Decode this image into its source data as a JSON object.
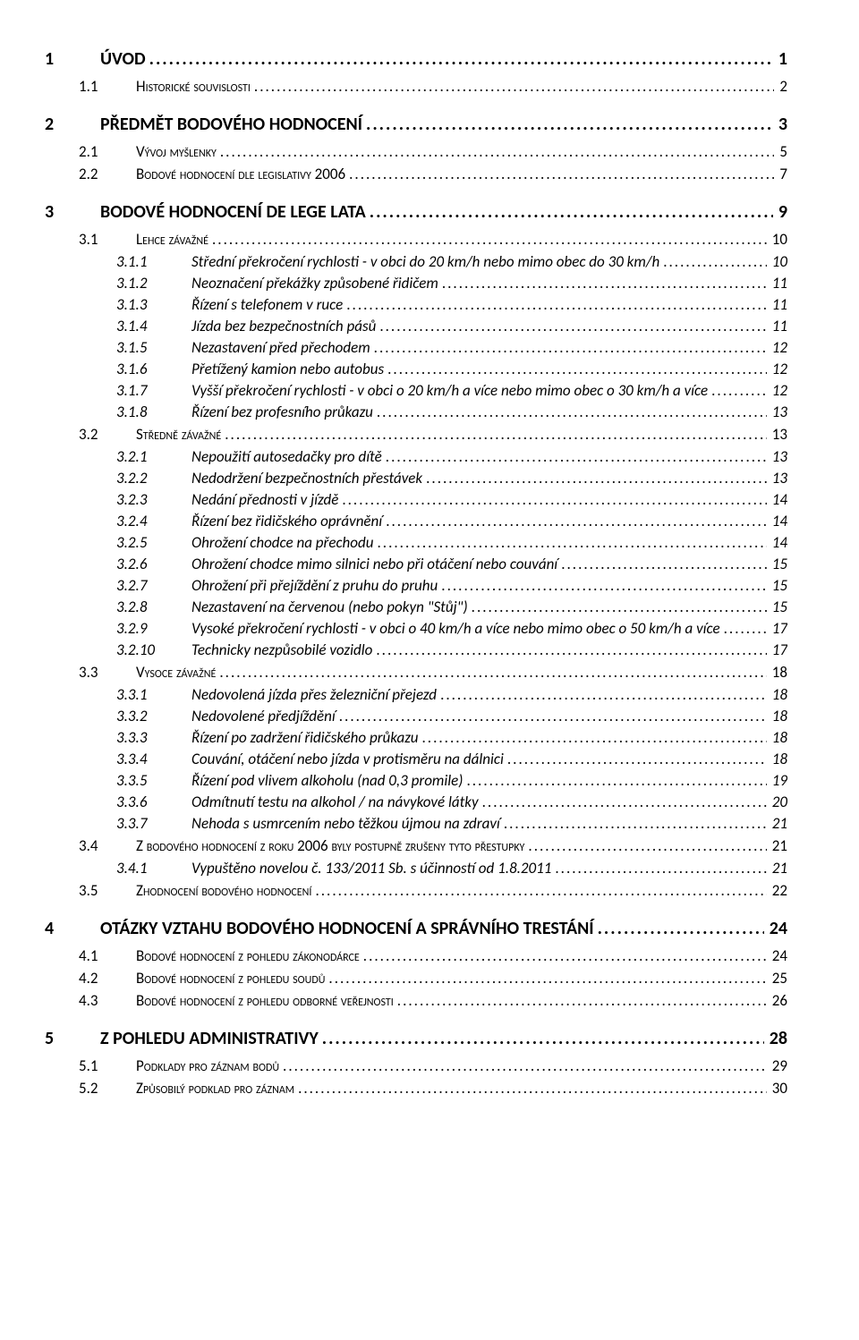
{
  "toc": [
    {
      "level": 1,
      "num": "1",
      "label": "ÚVOD",
      "page": "1"
    },
    {
      "level": 2,
      "num": "1.1",
      "label": "Historické souvislosti",
      "page": "2"
    },
    {
      "level": 1,
      "num": "2",
      "label": "PŘEDMĚT BODOVÉHO HODNOCENÍ",
      "page": "3"
    },
    {
      "level": 2,
      "num": "2.1",
      "label": "Vývoj myšlenky",
      "page": "5"
    },
    {
      "level": 2,
      "num": "2.2",
      "label": "Bodové hodnocení dle legislativy 2006",
      "page": "7"
    },
    {
      "level": 1,
      "num": "3",
      "label": "BODOVÉ HODNOCENÍ DE LEGE LATA",
      "page": "9"
    },
    {
      "level": 2,
      "num": "3.1",
      "label": "Lehce závažné",
      "page": "10"
    },
    {
      "level": 3,
      "num": "3.1.1",
      "label": "Střední překročení rychlosti - v obci do 20 km/h nebo mimo obec do 30 km/h",
      "page": "10"
    },
    {
      "level": 3,
      "num": "3.1.2",
      "label": "Neoznačení překážky způsobené řidičem",
      "page": "11"
    },
    {
      "level": 3,
      "num": "3.1.3",
      "label": "Řízení s telefonem v ruce",
      "page": "11"
    },
    {
      "level": 3,
      "num": "3.1.4",
      "label": "Jízda bez bezpečnostních pásů",
      "page": "11"
    },
    {
      "level": 3,
      "num": "3.1.5",
      "label": "Nezastavení před přechodem",
      "page": "12"
    },
    {
      "level": 3,
      "num": "3.1.6",
      "label": "Přetížený kamion nebo autobus",
      "page": "12"
    },
    {
      "level": 3,
      "num": "3.1.7",
      "label": "Vyšší překročení rychlosti - v obci o 20 km/h  a více nebo mimo obec o 30 km/h a více",
      "page": "12"
    },
    {
      "level": 3,
      "num": "3.1.8",
      "label": "Řízení bez profesního průkazu",
      "page": "13"
    },
    {
      "level": 2,
      "num": "3.2",
      "label": "Středně závažné",
      "page": "13"
    },
    {
      "level": 3,
      "num": "3.2.1",
      "label": "Nepoužití autosedačky pro dítě",
      "page": "13"
    },
    {
      "level": 3,
      "num": "3.2.2",
      "label": "Nedodržení bezpečnostních přestávek",
      "page": "13"
    },
    {
      "level": 3,
      "num": "3.2.3",
      "label": "Nedání přednosti v jízdě",
      "page": "14"
    },
    {
      "level": 3,
      "num": "3.2.4",
      "label": "Řízení bez řidičského oprávnění",
      "page": "14"
    },
    {
      "level": 3,
      "num": "3.2.5",
      "label": "Ohrožení chodce na přechodu",
      "page": "14"
    },
    {
      "level": 3,
      "num": "3.2.6",
      "label": "Ohrožení chodce mimo silnici nebo při otáčení nebo couvání",
      "page": "15"
    },
    {
      "level": 3,
      "num": "3.2.7",
      "label": "Ohrožení při přejíždění z pruhu do pruhu",
      "page": "15"
    },
    {
      "level": 3,
      "num": "3.2.8",
      "label": "Nezastavení na červenou (nebo pokyn \"Stůj\")",
      "page": "15"
    },
    {
      "level": 3,
      "num": "3.2.9",
      "label": "Vysoké překročení rychlosti - v obci o 40 km/h a více nebo mimo obec o 50 km/h a více",
      "page": "17"
    },
    {
      "level": 3,
      "num": "3.2.10",
      "label": "Technicky nezpůsobilé vozidlo",
      "page": "17"
    },
    {
      "level": 2,
      "num": "3.3",
      "label": "Vysoce závažné",
      "page": "18"
    },
    {
      "level": 3,
      "num": "3.3.1",
      "label": "Nedovolená jízda přes železniční přejezd",
      "page": "18"
    },
    {
      "level": 3,
      "num": "3.3.2",
      "label": "Nedovolené předjíždění",
      "page": "18"
    },
    {
      "level": 3,
      "num": "3.3.3",
      "label": "Řízení po zadržení řidičského průkazu",
      "page": "18"
    },
    {
      "level": 3,
      "num": "3.3.4",
      "label": "Couvání, otáčení nebo jízda v protisměru na dálnici",
      "page": "18"
    },
    {
      "level": 3,
      "num": "3.3.5",
      "label": "Řízení pod vlivem alkoholu (nad 0,3 promile)",
      "page": "19"
    },
    {
      "level": 3,
      "num": "3.3.6",
      "label": "Odmítnutí testu na alkohol / na návykové látky",
      "page": "20"
    },
    {
      "level": 3,
      "num": "3.3.7",
      "label": "Nehoda s usmrcením nebo těžkou újmou na zdraví",
      "page": "21"
    },
    {
      "level": 2,
      "num": "3.4",
      "label": "Z bodového hodnocení z roku 2006 byly postupně zrušeny tyto přestupky",
      "page": "21"
    },
    {
      "level": 3,
      "num": "3.4.1",
      "label": "Vypuštěno novelou č. 133/2011 Sb. s účinností od 1.8.2011",
      "page": "21"
    },
    {
      "level": 2,
      "num": "3.5",
      "label": "Zhodnocení bodového hodnocení",
      "page": "22"
    },
    {
      "level": 1,
      "num": "4",
      "label": "OTÁZKY VZTAHU BODOVÉHO HODNOCENÍ A SPRÁVNÍHO TRESTÁNÍ",
      "page": "24"
    },
    {
      "level": 2,
      "num": "4.1",
      "label": "Bodové hodnocení z pohledu zákonodárce",
      "page": "24"
    },
    {
      "level": 2,
      "num": "4.2",
      "label": "Bodové hodnocení z pohledu soudů",
      "page": "25"
    },
    {
      "level": 2,
      "num": "4.3",
      "label": "Bodové hodnocení z pohledu odborné veřejnosti",
      "page": "26"
    },
    {
      "level": 1,
      "num": "5",
      "label": "Z POHLEDU ADMINISTRATIVY",
      "page": "28"
    },
    {
      "level": 2,
      "num": "5.1",
      "label": "Podklady pro záznam bodů",
      "page": "29"
    },
    {
      "level": 2,
      "num": "5.2",
      "label": "Způsobilý podklad pro záznam",
      "page": "30"
    }
  ],
  "style": {
    "text_color": "#000000",
    "background_color": "#ffffff",
    "lvl1_fontsize": 20,
    "lvl2_fontsize": 17,
    "lvl3_fontsize": 17,
    "font_family": "Calibri"
  }
}
